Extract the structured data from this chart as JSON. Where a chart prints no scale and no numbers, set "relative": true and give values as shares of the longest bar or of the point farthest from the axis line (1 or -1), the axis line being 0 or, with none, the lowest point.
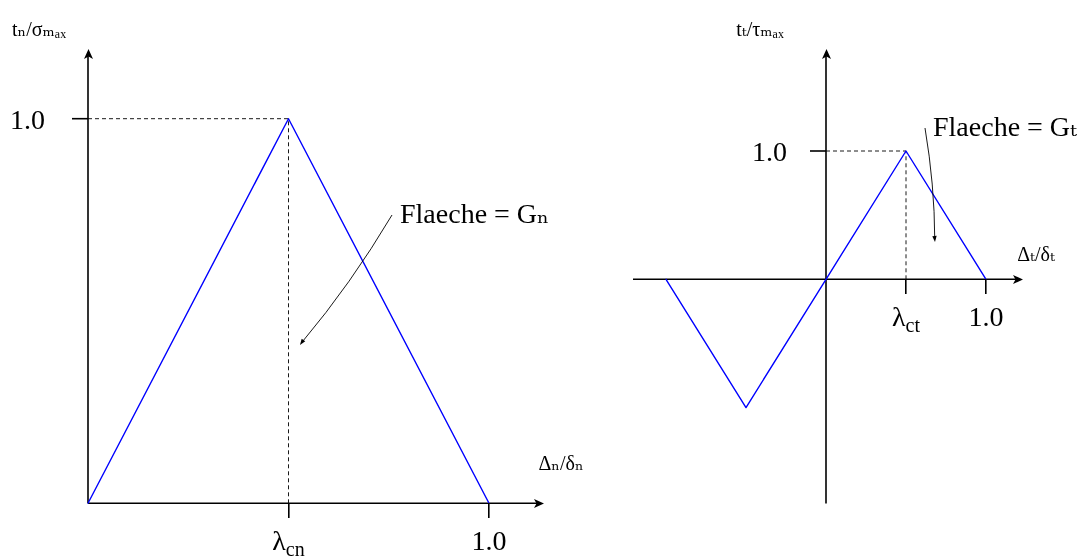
{
  "chart_data": [
    {
      "type": "line",
      "relative": true,
      "xlabel": "Δₙ/δₙ",
      "ylabel": "tₙ/σₘₐₓ",
      "categories": [
        null,
        "λ$_{cn}$",
        "1.0"
      ],
      "series": [
        {
          "color": "#0000ff",
          "values": [
            0,
            1,
            0
          ]
        }
      ],
      "ref_lines": [
        {
          "axis": "y",
          "value": 1,
          "label": "1.0",
          "color": "#000000",
          "line_style": "dashed"
        },
        {
          "axis": "x",
          "value": "λ$_{cn}$",
          "color": "#000000",
          "line_style": "dashed"
        }
      ],
      "annotations": [
        "Flaeche = Gₙ"
      ]
    },
    {
      "type": "line",
      "relative": true,
      "xlabel": "Δₜ/δₜ",
      "ylabel": "tₜ/τₘₐₓ",
      "categories": [
        null,
        null,
        null,
        "λ$_{ct}$",
        "1.0"
      ],
      "series": [
        {
          "color": "#0000ff",
          "values": [
            0,
            -1,
            0,
            1,
            0
          ]
        }
      ],
      "ref_lines": [
        {
          "axis": "y",
          "value": 1,
          "label": "1.0",
          "color": "#000000",
          "line_style": "dashed"
        },
        {
          "axis": "x",
          "value": "λ$_{ct}$",
          "color": "#000000",
          "line_style": "dashed"
        }
      ],
      "annotations": [
        "Flaeche = Gₜ"
      ]
    }
  ]
}
